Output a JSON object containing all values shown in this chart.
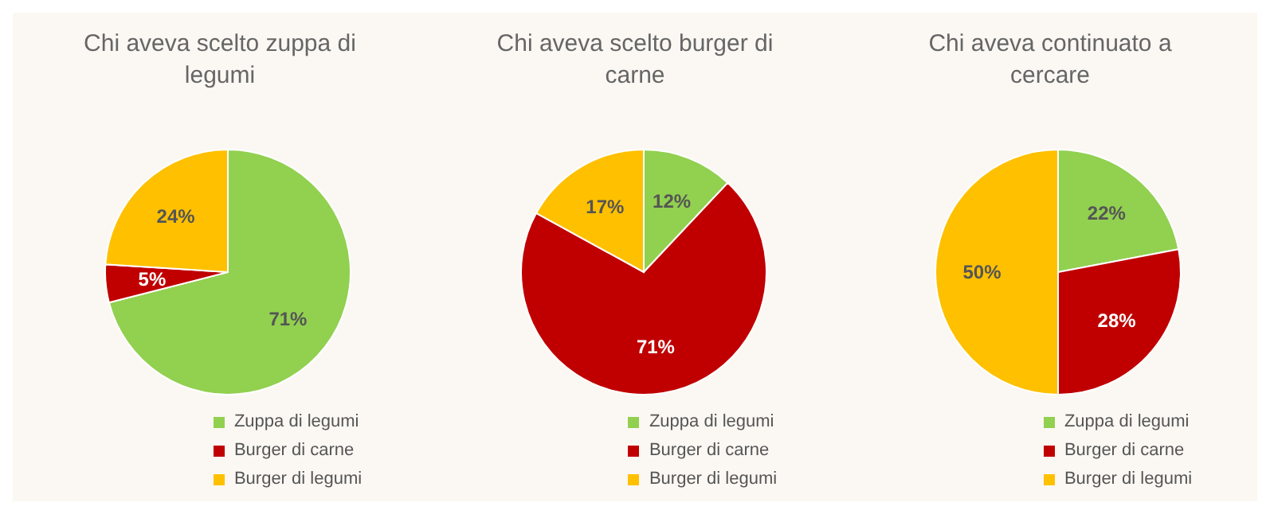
{
  "chart_data": [
    {
      "type": "pie",
      "title": "Chi aveva scelto zuppa di legumi",
      "categories": [
        "Zuppa di legumi",
        "Burger di carne",
        "Burger di legumi"
      ],
      "values": [
        71,
        5,
        24
      ],
      "value_labels": [
        "71%",
        "5%",
        "24%"
      ],
      "colors": [
        "#92d050",
        "#c00000",
        "#ffc000"
      ],
      "legend": "bottom"
    },
    {
      "type": "pie",
      "title": "Chi aveva scelto burger di carne",
      "categories": [
        "Zuppa di legumi",
        "Burger di carne",
        "Burger di legumi"
      ],
      "values": [
        12,
        71,
        17
      ],
      "value_labels": [
        "12%",
        "71%",
        "17%"
      ],
      "colors": [
        "#92d050",
        "#c00000",
        "#ffc000"
      ],
      "legend": "bottom"
    },
    {
      "type": "pie",
      "title": "Chi aveva continuato a cercare",
      "categories": [
        "Zuppa di legumi",
        "Burger di carne",
        "Burger di legumi"
      ],
      "values": [
        22,
        28,
        50
      ],
      "value_labels": [
        "22%",
        "28%",
        "50%"
      ],
      "colors": [
        "#92d050",
        "#c00000",
        "#ffc000"
      ],
      "legend": "bottom"
    }
  ]
}
